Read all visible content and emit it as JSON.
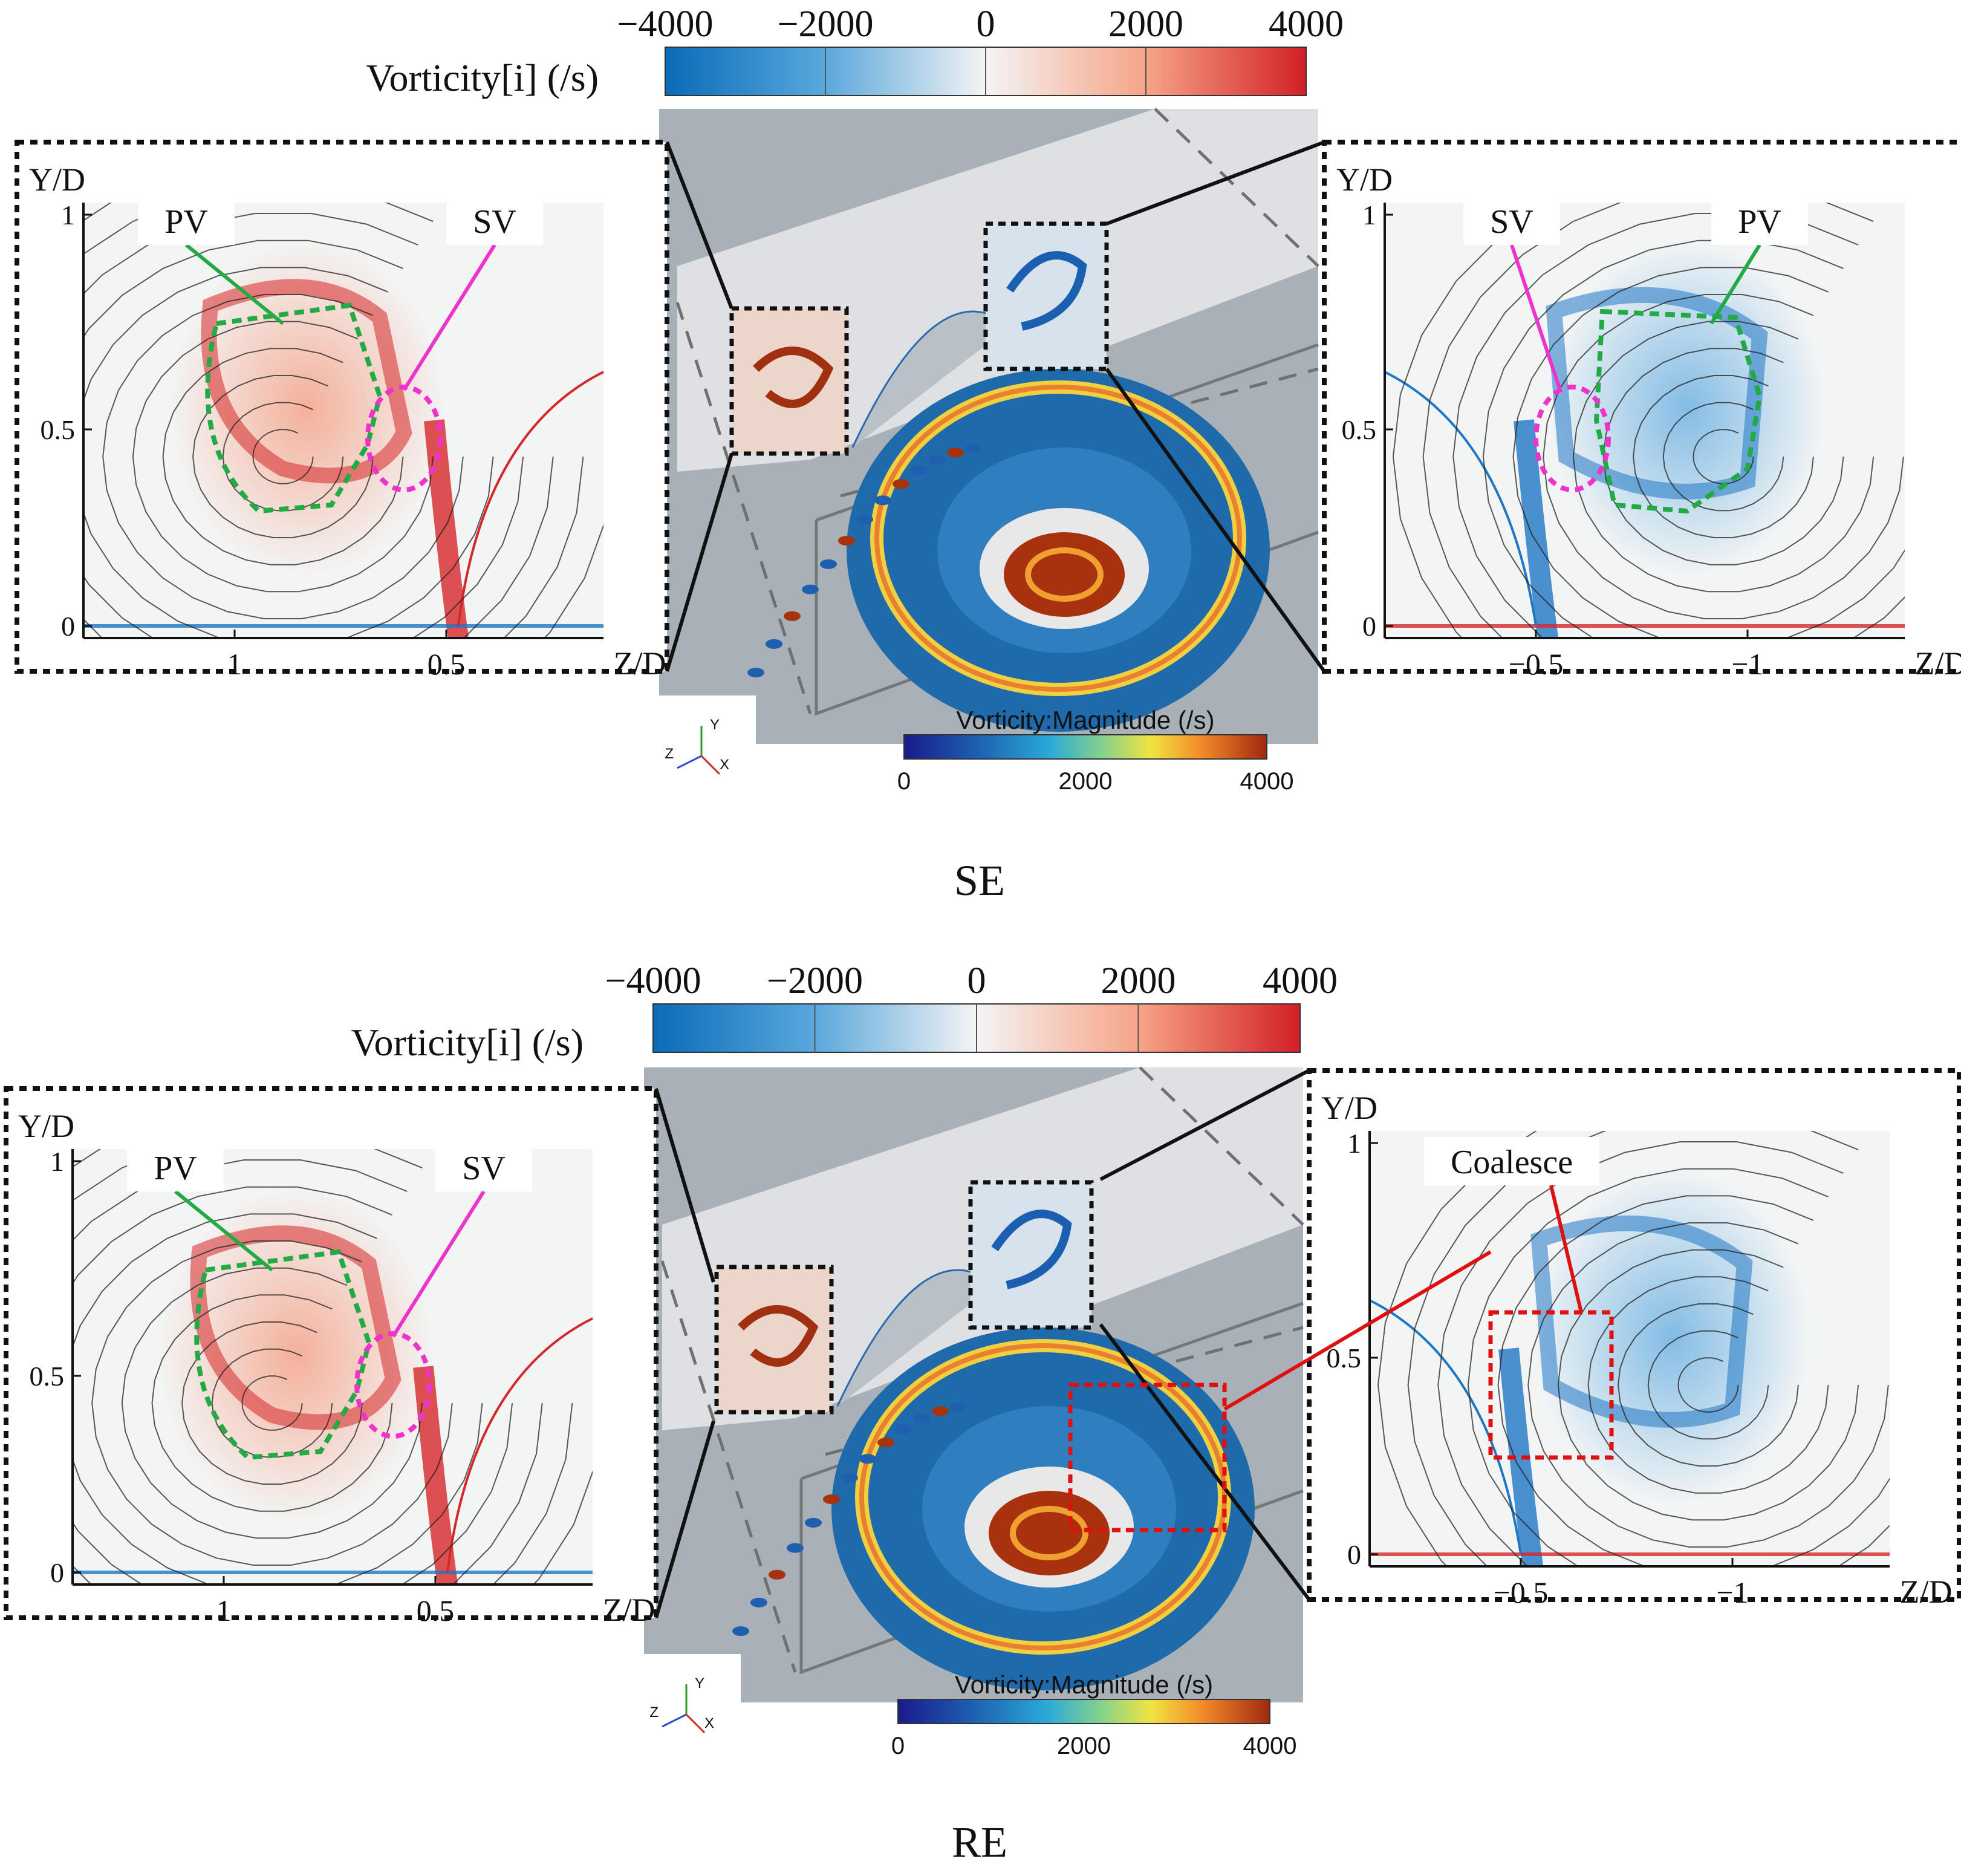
{
  "panels": [
    {
      "id": "se",
      "caption": "SE",
      "vorticity_colorbar": {
        "title": "Vorticity[i] (/s)",
        "ticks": [
          "−4000",
          "−2000",
          "0",
          "2000",
          "4000"
        ]
      },
      "magnitude_colorbar": {
        "title": "Vorticity:Magnitude (/s)",
        "ticks": [
          "0",
          "2000",
          "4000"
        ]
      },
      "triad": {
        "y": "Y",
        "z": "Z",
        "x": "X"
      },
      "left_inset": {
        "y_axis_label": "Y/D",
        "x_axis_label": "Z/D",
        "y_ticks": [
          "1",
          "0.5",
          "0"
        ],
        "x_ticks": [
          "1",
          "0.5"
        ],
        "labels": [
          "PV",
          "SV"
        ]
      },
      "right_inset": {
        "y_axis_label": "Y/D",
        "x_axis_label": "Z/D",
        "y_ticks": [
          "1",
          "0.5",
          "0"
        ],
        "x_ticks": [
          "−0.5",
          "−1"
        ],
        "labels": [
          "SV",
          "PV"
        ]
      }
    },
    {
      "id": "re",
      "caption": "RE",
      "vorticity_colorbar": {
        "title": "Vorticity[i] (/s)",
        "ticks": [
          "−4000",
          "−2000",
          "0",
          "2000",
          "4000"
        ]
      },
      "magnitude_colorbar": {
        "title": "Vorticity:Magnitude (/s)",
        "ticks": [
          "0",
          "2000",
          "4000"
        ]
      },
      "triad": {
        "y": "Y",
        "z": "Z",
        "x": "X"
      },
      "left_inset": {
        "y_axis_label": "Y/D",
        "x_axis_label": "Z/D",
        "y_ticks": [
          "1",
          "0.5",
          "0"
        ],
        "x_ticks": [
          "1",
          "0.5"
        ],
        "labels": [
          "PV",
          "SV"
        ]
      },
      "right_inset": {
        "y_axis_label": "Y/D",
        "x_axis_label": "Z/D",
        "y_ticks": [
          "1",
          "0.5",
          "0"
        ],
        "x_ticks": [
          "−0.5",
          "−1"
        ],
        "labels": [
          "Coalesce"
        ]
      }
    }
  ],
  "colors": {
    "negative": "#1f77c4",
    "positive": "#d62728",
    "pv_outline": "#22aa44",
    "sv_outline": "#ee33cc",
    "coalesce": "#e01010",
    "scene_bg": "#a8b0b8"
  }
}
